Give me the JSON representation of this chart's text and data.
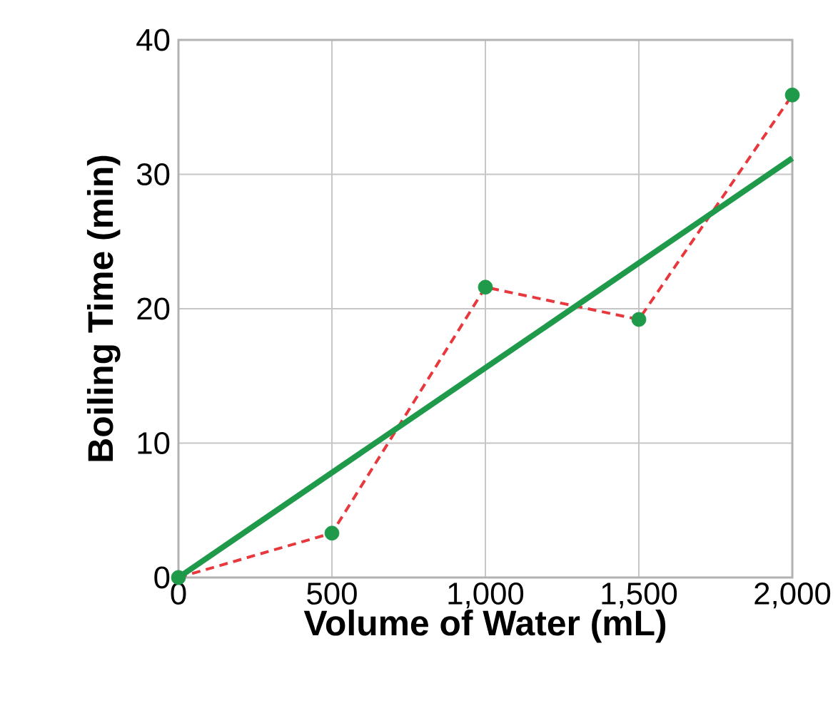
{
  "chart_data": {
    "type": "line",
    "xlabel": "Volume of Water (mL)",
    "ylabel": "Boiling Time (min)",
    "x": [
      0,
      500,
      1000,
      1500,
      2000
    ],
    "series": [
      {
        "color": "#e8383d",
        "line_style": "dashed",
        "marker": "none",
        "values": [
          0,
          3.3,
          21.6,
          19.2,
          35.9
        ]
      },
      {
        "type": "scatter",
        "color": "#1e9a4a",
        "marker": "circle",
        "values": [
          0,
          3.3,
          21.6,
          19.2,
          35.9
        ]
      },
      {
        "color": "#1e9a4a",
        "line_style": "solid",
        "marker": "none",
        "x": [
          0,
          2000
        ],
        "values": [
          0,
          31.2
        ]
      }
    ],
    "xlim": [
      0,
      2000
    ],
    "ylim": [
      0,
      40
    ],
    "xticks": [
      0,
      500,
      {
        "value": 1000,
        "label": "1,000"
      },
      {
        "value": 1500,
        "label": "1,500"
      },
      {
        "value": 2000,
        "label": "2,000"
      }
    ],
    "yticks": [
      0,
      10,
      20,
      30,
      40
    ],
    "grid": true
  }
}
